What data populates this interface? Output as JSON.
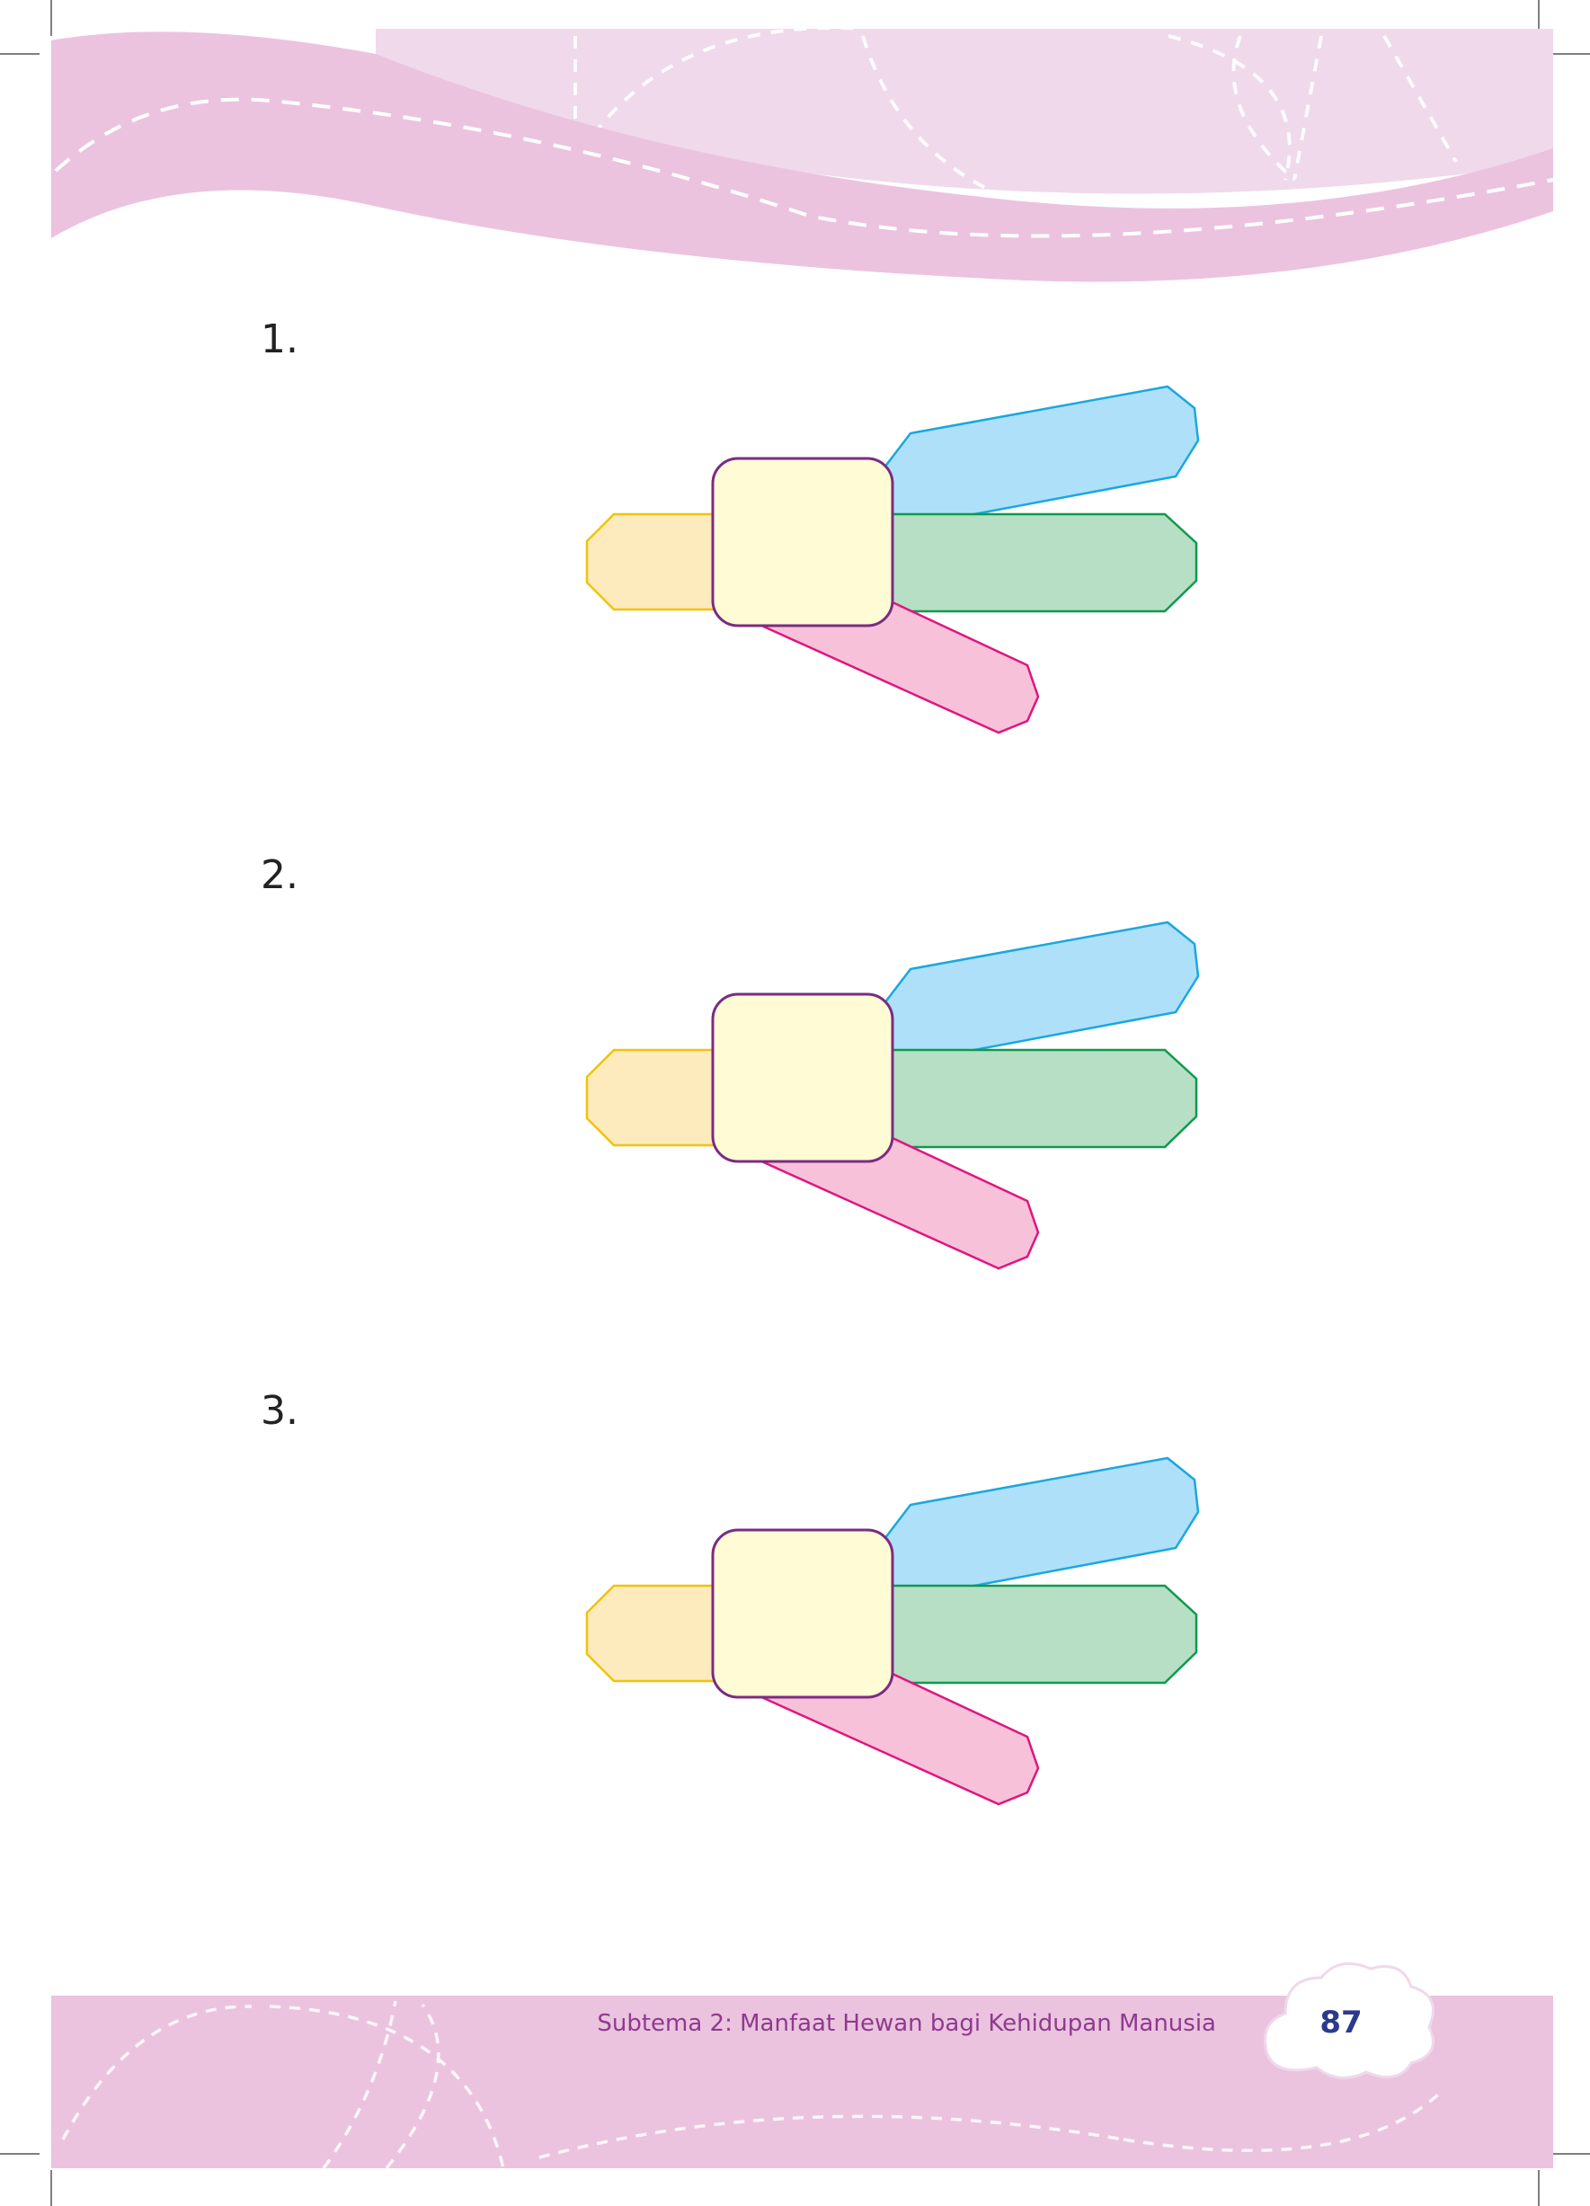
{
  "page": {
    "background_color": "#ffffff",
    "accent_pink": "#ebc3df",
    "accent_light_pink": "#efd9eb"
  },
  "items": [
    {
      "number": "1."
    },
    {
      "number": "2."
    },
    {
      "number": "3."
    }
  ],
  "diagram_colors": {
    "yellow_fill": "#fdebbd",
    "yellow_stroke": "#f2c20b",
    "blue_fill": "#aee0fa",
    "blue_stroke": "#1aa7e0",
    "green_fill": "#b6dfc5",
    "green_stroke": "#0e9a4b",
    "pink_fill": "#f7c1da",
    "pink_stroke": "#e0157f",
    "center_fill": "#fffbd5",
    "center_stroke": "#7b2c81"
  },
  "footer": {
    "subtitle": "Subtema 2: Manfaat Hewan bagi Kehidupan Manusia",
    "page_number": "87"
  }
}
